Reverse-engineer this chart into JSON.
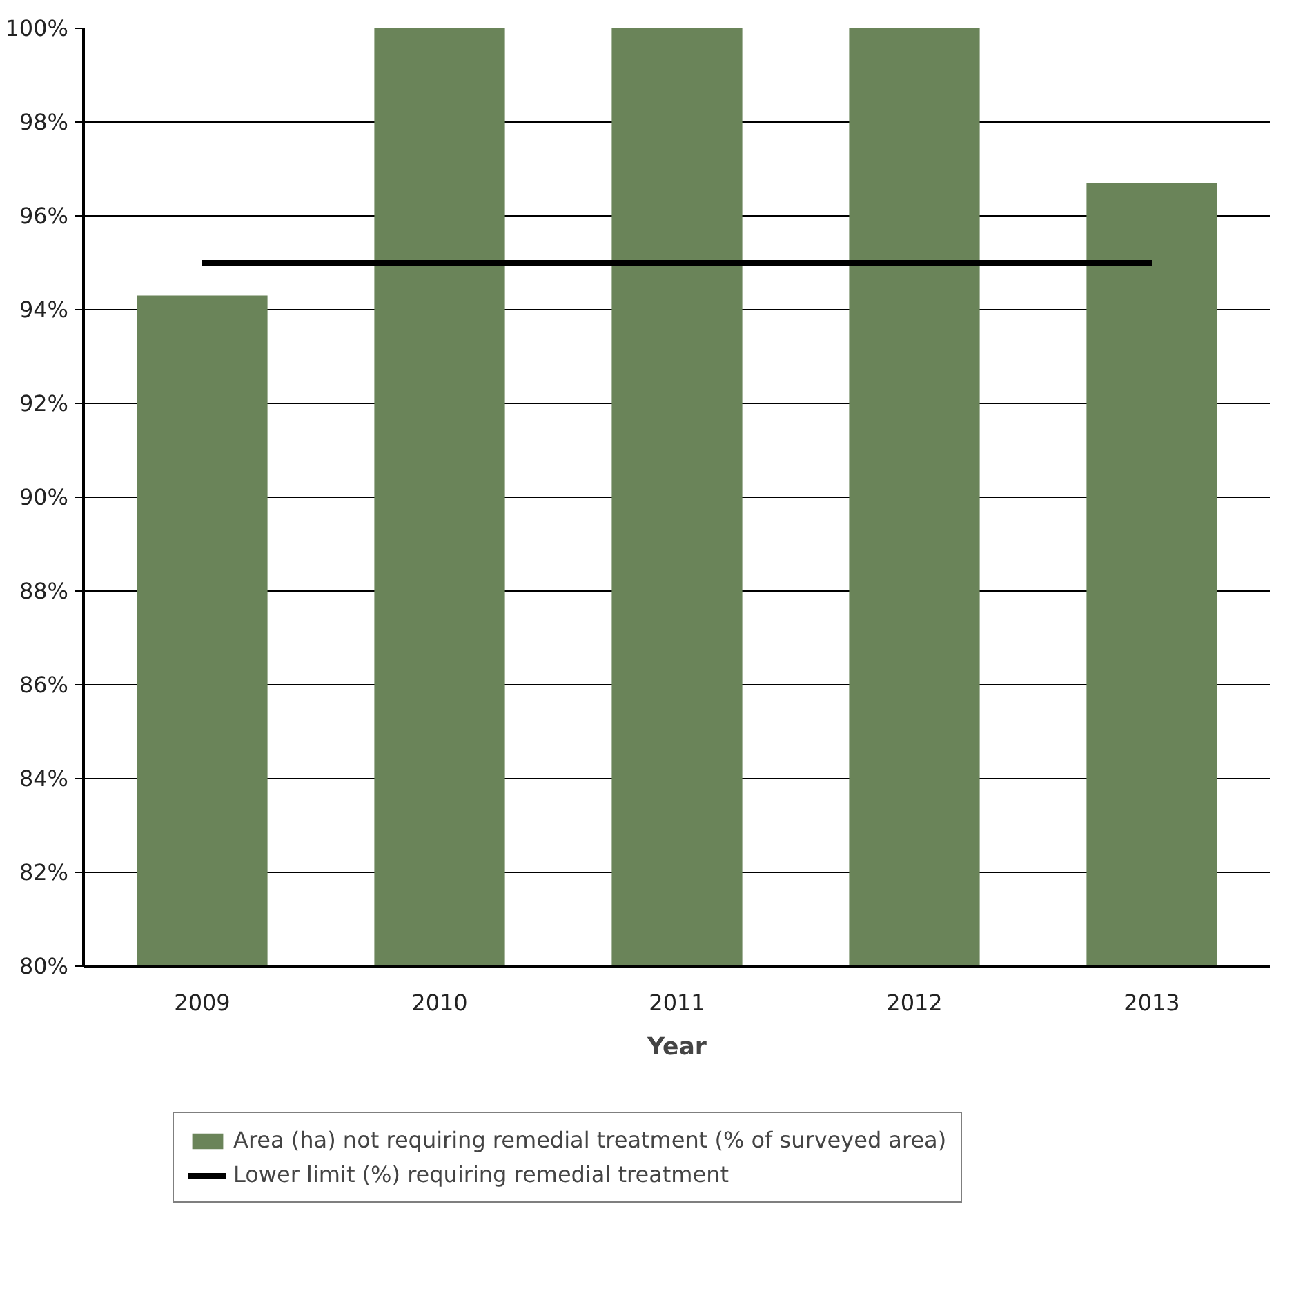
{
  "chart_data": {
    "type": "bar",
    "xlabel": "Year",
    "categories": [
      "2009",
      "2010",
      "2011",
      "2012",
      "2013"
    ],
    "series": [
      {
        "name": "Area (ha) not requiring remedial treatment (% of surveyed area)",
        "color": "#6a8459",
        "values": [
          94.3,
          100,
          100,
          100,
          96.7
        ]
      },
      {
        "name": "Lower limit (%) requiring remedial treatment",
        "color": "#000000",
        "type": "line",
        "values": [
          95,
          95,
          95,
          95,
          95
        ]
      }
    ],
    "ylim": [
      80,
      100
    ],
    "yticks": [
      {
        "value": 80,
        "label": "80%"
      },
      {
        "value": 82,
        "label": "82%"
      },
      {
        "value": 84,
        "label": "84%"
      },
      {
        "value": 86,
        "label": "86%"
      },
      {
        "value": 88,
        "label": "88%"
      },
      {
        "value": 90,
        "label": "90%"
      },
      {
        "value": 92,
        "label": "92%"
      },
      {
        "value": 94,
        "label": "94%"
      },
      {
        "value": 96,
        "label": "96%"
      },
      {
        "value": 98,
        "label": "98%"
      },
      {
        "value": 100,
        "label": "100%"
      }
    ],
    "grid": "y",
    "legend": "bottom"
  }
}
